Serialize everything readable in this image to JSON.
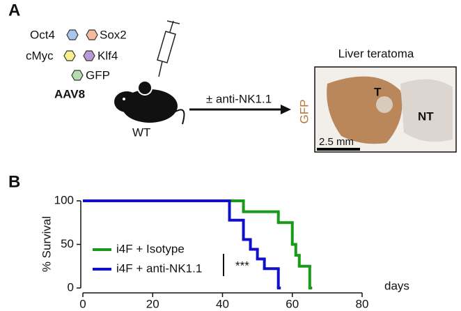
{
  "panel_a": {
    "label": "A",
    "factors": [
      "Oct4",
      "Sox2",
      "cMyc",
      "Klf4",
      "GFP"
    ],
    "vector": "AAV8",
    "mouse": "WT",
    "treatment": "± anti-NK1.1",
    "image_title": "Liver teratoma",
    "stain": "GFP",
    "regions": [
      "T",
      "NT"
    ],
    "scale_bar": "2.5 mm"
  },
  "chart_data": {
    "type": "step",
    "panel_label": "B",
    "ylabel": "% Survival",
    "xlabel": "days",
    "annotation": "***",
    "xlim": [
      0,
      80
    ],
    "xticks": [
      0,
      20,
      40,
      60,
      80
    ],
    "ylim": [
      0,
      100
    ],
    "yticks": [
      0,
      50,
      100
    ],
    "series": [
      {
        "name": "i4F + Isotype",
        "color": "#1a9a1a",
        "x": [
          0,
          46,
          56,
          60,
          61,
          62,
          65
        ],
        "values": [
          100,
          87.5,
          75,
          50,
          37.5,
          25,
          0
        ]
      },
      {
        "name": "i4F + anti-NK1.1",
        "color": "#1010c8",
        "x": [
          0,
          42,
          46,
          48,
          50,
          52,
          56
        ],
        "values": [
          100,
          77.8,
          55.6,
          44.4,
          33.3,
          22.2,
          0
        ]
      }
    ]
  }
}
